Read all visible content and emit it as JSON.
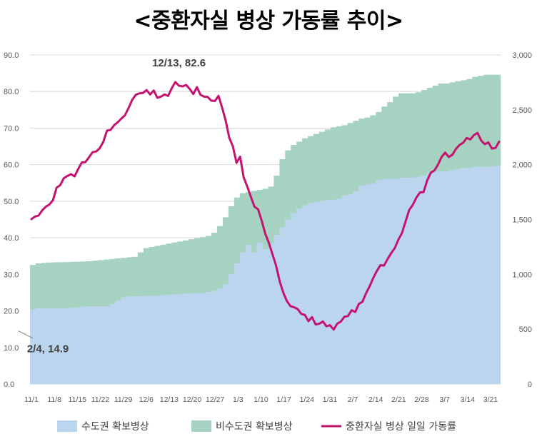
{
  "title": "<중환자실 병상 가동률 추이>",
  "chart_data": {
    "type": "area+line",
    "x_labels": [
      "11/1",
      "11/8",
      "11/15",
      "11/22",
      "11/29",
      "12/6",
      "12/13",
      "12/20",
      "12/27",
      "1/3",
      "1/10",
      "1/17",
      "1/24",
      "1/31",
      "2/7",
      "2/14",
      "2/21",
      "2/28",
      "3/7",
      "3/14",
      "3/21"
    ],
    "left_axis": {
      "min": 0,
      "max": 90,
      "step": 10,
      "tick_labels": [
        "0.0",
        "10.0",
        "20.0",
        "30.0",
        "40.0",
        "50.0",
        "60.0",
        "70.0",
        "80.0",
        "90.0"
      ]
    },
    "right_axis": {
      "min": 0,
      "max": 3000,
      "step": 500,
      "tick_labels": [
        "0",
        "500",
        "1,000",
        "1,500",
        "2,000",
        "2,500",
        "3,000"
      ]
    },
    "series": [
      {
        "name": "수도권 확보병상",
        "type": "area",
        "axis": "right",
        "color": "#bcd5ee",
        "values": [
          680,
          690,
          690,
          690,
          690,
          690,
          690,
          695,
          700,
          705,
          710,
          710,
          710,
          710,
          730,
          760,
          790,
          800,
          800,
          800,
          805,
          805,
          805,
          810,
          815,
          815,
          820,
          825,
          830,
          830,
          830,
          840,
          850,
          870,
          910,
          1000,
          1100,
          1200,
          1270,
          1200,
          1290,
          1230,
          1280,
          1360,
          1430,
          1500,
          1560,
          1600,
          1630,
          1650,
          1660,
          1670,
          1680,
          1680,
          1690,
          1720,
          1730,
          1760,
          1810,
          1820,
          1830,
          1860,
          1870,
          1870,
          1870,
          1880,
          1880,
          1880,
          1890,
          1900,
          1930,
          1940,
          1940,
          1940,
          1950,
          1960,
          1970,
          1970,
          1980,
          1980,
          1980,
          1985,
          1990
        ]
      },
      {
        "name": "비수도권 확보병상",
        "type": "area",
        "axis": "right",
        "color": "#a6d2c2",
        "values": [
          1085,
          1100,
          1105,
          1108,
          1110,
          1110,
          1112,
          1115,
          1115,
          1118,
          1120,
          1125,
          1130,
          1135,
          1140,
          1145,
          1150,
          1155,
          1160,
          1200,
          1240,
          1250,
          1260,
          1270,
          1280,
          1290,
          1300,
          1310,
          1320,
          1330,
          1340,
          1350,
          1380,
          1440,
          1520,
          1620,
          1700,
          1740,
          1750,
          1760,
          1770,
          1780,
          1800,
          1900,
          2050,
          2130,
          2180,
          2210,
          2240,
          2260,
          2280,
          2300,
          2320,
          2340,
          2350,
          2360,
          2380,
          2400,
          2420,
          2430,
          2450,
          2480,
          2530,
          2570,
          2620,
          2650,
          2650,
          2650,
          2660,
          2680,
          2700,
          2720,
          2740,
          2740,
          2750,
          2760,
          2770,
          2780,
          2800,
          2810,
          2820,
          2820,
          2820
        ]
      },
      {
        "name": "중환자실 병상 일일 가동률",
        "type": "line",
        "axis": "left",
        "color": "#c4136f",
        "values": [
          45.1,
          45.8,
          46.1,
          47.5,
          48.5,
          49.1,
          50.3,
          53.7,
          54.4,
          56.3,
          56.9,
          57.4,
          56.8,
          58.8,
          60.6,
          60.7,
          62.0,
          63.4,
          63.6,
          64.5,
          66.3,
          69.3,
          69.5,
          70.8,
          71.6,
          72.6,
          73.5,
          75.5,
          77.7,
          79.1,
          79.5,
          79.6,
          80.4,
          79.2,
          80.3,
          78.3,
          78.6,
          79.2,
          78.8,
          80.9,
          82.6,
          81.6,
          81.4,
          81.8,
          80.7,
          79.3,
          81.2,
          79.1,
          78.6,
          78.5,
          77.5,
          77.4,
          78.8,
          75.6,
          72.0,
          67.3,
          65.0,
          60.5,
          62.2,
          56.5,
          54.0,
          51.2,
          48.5,
          47.8,
          44.7,
          41.1,
          38.6,
          35.5,
          32.4,
          28.1,
          25.0,
          22.7,
          21.3,
          21.0,
          20.5,
          19.2,
          18.9,
          17.2,
          18.3,
          16.3,
          16.5,
          17.1,
          15.8,
          16.1,
          14.9,
          16.5,
          17.1,
          18.4,
          18.6,
          20.2,
          19.7,
          21.9,
          22.5,
          24.8,
          26.7,
          29.0,
          30.9,
          32.5,
          32.4,
          34.2,
          35.8,
          37.2,
          39.5,
          41.3,
          44.5,
          47.6,
          49.0,
          51.0,
          52.4,
          52.5,
          55.7,
          57.8,
          58.4,
          60.0,
          62.1,
          63.3,
          62.1,
          62.7,
          64.3,
          65.4,
          66.0,
          67.3,
          66.9,
          68.1,
          68.7,
          66.6,
          65.6,
          66.1,
          64.4,
          64.6,
          66.3
        ]
      }
    ],
    "annotations": [
      {
        "text": "12/13, 82.6",
        "x": "12/13",
        "y": 82.6
      },
      {
        "text": "2/4, 14.9",
        "x": "2/4",
        "y": 14.9
      }
    ],
    "legend": {
      "position": "bottom"
    },
    "grid": true
  }
}
